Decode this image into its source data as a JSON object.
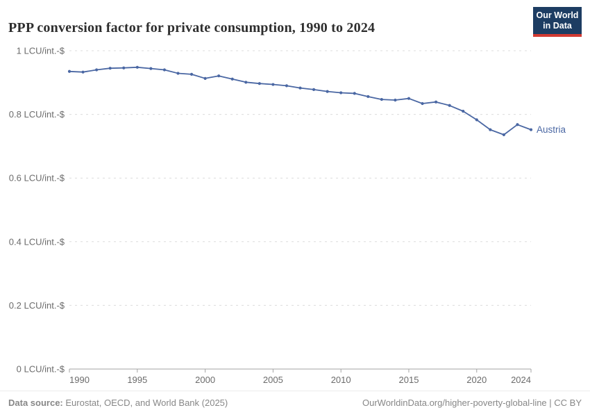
{
  "header": {
    "logo": {
      "line1": "Our World",
      "line2": "in Data",
      "bg_color": "#1d3d63",
      "bar_color": "#d23a32"
    }
  },
  "chart_data": {
    "type": "line",
    "title": "PPP conversion factor for private consumption, 1990 to 2024",
    "y_unit": "LCU/int.-$",
    "xlim": [
      1990,
      2024
    ],
    "ylim": [
      0,
      1
    ],
    "grid": "horizontal-dashed",
    "legend_position": "end-of-line-label",
    "x_ticks": [
      1990,
      1995,
      2000,
      2005,
      2010,
      2015,
      2020,
      2024
    ],
    "y_ticks": [
      0,
      0.2,
      0.4,
      0.6,
      0.8,
      1
    ],
    "y_tick_labels": [
      "0 LCU/int.-$",
      "0.2 LCU/int.-$",
      "0.4 LCU/int.-$",
      "0.6 LCU/int.-$",
      "0.8 LCU/int.-$",
      "1 LCU/int.-$"
    ],
    "series": [
      {
        "name": "Austria",
        "color": "#4a67a3",
        "x": [
          1990,
          1991,
          1992,
          1993,
          1994,
          1995,
          1996,
          1997,
          1998,
          1999,
          2000,
          2001,
          2002,
          2003,
          2004,
          2005,
          2006,
          2007,
          2008,
          2009,
          2010,
          2011,
          2012,
          2013,
          2014,
          2015,
          2016,
          2017,
          2018,
          2019,
          2020,
          2021,
          2022,
          2023,
          2024
        ],
        "values": [
          0.935,
          0.933,
          0.94,
          0.945,
          0.946,
          0.948,
          0.944,
          0.94,
          0.929,
          0.926,
          0.913,
          0.921,
          0.911,
          0.901,
          0.897,
          0.894,
          0.89,
          0.883,
          0.878,
          0.872,
          0.868,
          0.866,
          0.856,
          0.847,
          0.845,
          0.85,
          0.834,
          0.839,
          0.828,
          0.81,
          0.783,
          0.752,
          0.736,
          0.768,
          0.752
        ]
      }
    ],
    "axis_color": "#a3a3a3",
    "grid_color": "#dcdcdc",
    "tick_label_color": "#6b6b6b"
  },
  "footer": {
    "source_label": "Data source:",
    "source_text": " Eurostat, OECD, and World Bank (2025)",
    "attribution": "OurWorldinData.org/higher-poverty-global-line | CC BY"
  }
}
